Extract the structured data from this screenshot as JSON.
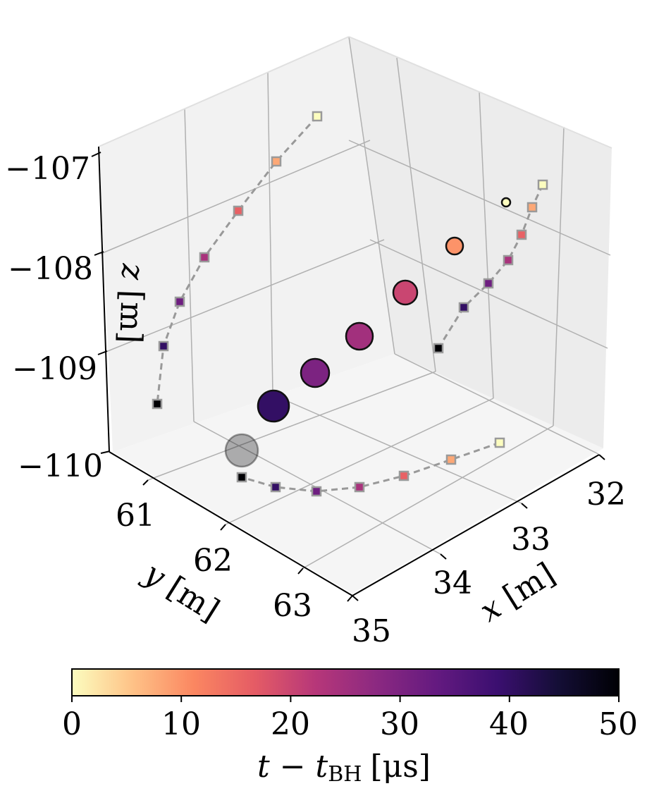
{
  "chart_data": {
    "type": "scatter3d",
    "title": "",
    "x_axis": {
      "label_var": "x",
      "label_unit": "[m]",
      "ticks": [
        "32",
        "33",
        "34",
        "35"
      ],
      "range": [
        31.7,
        35.0
      ]
    },
    "y_axis": {
      "label_var": "y",
      "label_unit": "[m]",
      "ticks": [
        "61",
        "62",
        "63"
      ],
      "range": [
        60.5,
        63.7
      ]
    },
    "z_axis": {
      "label_var": "z",
      "label_unit": "[m]",
      "ticks": [
        "−107",
        "−108",
        "−109",
        "−110"
      ],
      "range": [
        -110.0,
        -106.9
      ]
    },
    "points": [
      {
        "t": 0,
        "size": "smallest",
        "x": 31.6,
        "y": 61.0,
        "z": -107.0
      },
      {
        "t": 10,
        "size": "small",
        "x": 32.2,
        "y": 61.4,
        "z": -107.7
      },
      {
        "t": 20,
        "size": "medium",
        "x": 32.7,
        "y": 61.9,
        "z": -108.3
      },
      {
        "t": 25,
        "size": "large",
        "x": 33.2,
        "y": 62.2,
        "z": -108.7
      },
      {
        "t": 30,
        "size": "large",
        "x": 33.6,
        "y": 62.6,
        "z": -109.0
      },
      {
        "t": 40,
        "size": "large",
        "x": 34.1,
        "y": 63.0,
        "z": -109.3
      },
      {
        "t": 50,
        "size": "large",
        "x": 34.5,
        "y": 63.4,
        "z": -109.6
      }
    ],
    "projection_series": [
      {
        "name": "xz-projection",
        "t": [
          0,
          10,
          20,
          30,
          40,
          50
        ]
      },
      {
        "name": "yz-projection",
        "t": [
          0,
          10,
          20,
          30,
          40,
          50
        ]
      },
      {
        "name": "xy-projection",
        "t": [
          0,
          10,
          20,
          30,
          40,
          50
        ]
      }
    ],
    "colorbar": {
      "colormap": "magma_r",
      "range": [
        0,
        50
      ],
      "ticks": [
        "0",
        "10",
        "20",
        "30",
        "40",
        "50"
      ],
      "label": "t − t",
      "label_sub": "BH",
      "label_unit": "[μs]",
      "stops": [
        "#fcfdbf",
        "#fec287",
        "#fb8761",
        "#e55c65",
        "#b73779",
        "#8c2981",
        "#641a80",
        "#3b0f70",
        "#140e36",
        "#000004"
      ]
    }
  }
}
